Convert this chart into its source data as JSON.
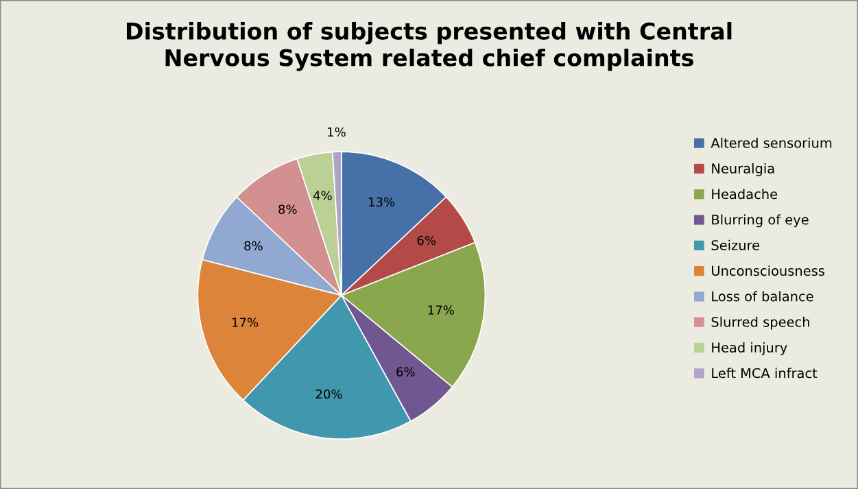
{
  "chart_data": {
    "type": "pie",
    "title": "Distribution of subjects presented with Central\nNervous System related chief complaints",
    "categories": [
      "Altered sensorium",
      "Neuralgia",
      "Headache",
      "Blurring of eye",
      "Seizure",
      "Unconsciousness",
      "Loss of balance",
      "Slurred speech",
      "Head injury",
      "Left MCA infract"
    ],
    "values": [
      13,
      6,
      17,
      6,
      20,
      17,
      8,
      8,
      4,
      1
    ],
    "value_labels": [
      "13%",
      "6%",
      "17%",
      "6%",
      "20%",
      "17%",
      "8%",
      "8%",
      "4%",
      "1%"
    ],
    "colors": [
      "#4670a8",
      "#b34a47",
      "#8aa74d",
      "#71578f",
      "#4198ae",
      "#dd843b",
      "#91a9d1",
      "#d39091",
      "#bad095",
      "#b0a3c9"
    ],
    "legend": "right"
  }
}
